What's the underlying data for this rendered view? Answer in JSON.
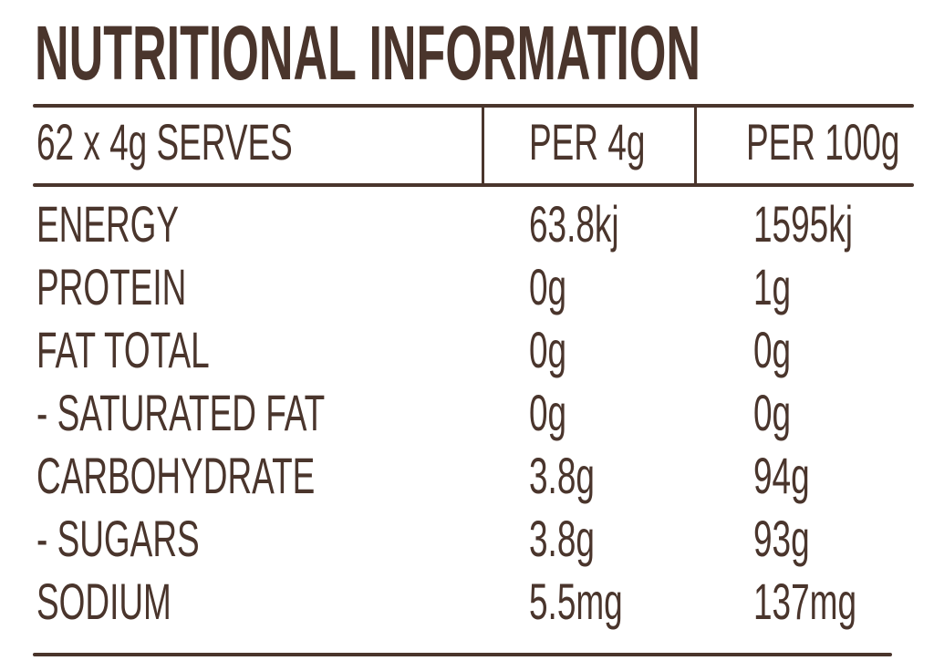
{
  "title": "NUTRITIONAL INFORMATION",
  "header": {
    "serves": "62 x 4g SERVES",
    "col1": "PER 4g",
    "col2": "PER 100g"
  },
  "rows": [
    {
      "label": "ENERGY",
      "per_serve": "63.8kj",
      "per_100g": "1595kj"
    },
    {
      "label": "PROTEIN",
      "per_serve": "0g",
      "per_100g": "1g"
    },
    {
      "label": "FAT TOTAL",
      "per_serve": "0g",
      "per_100g": "0g"
    },
    {
      "label": "- SATURATED FAT",
      "per_serve": "0g",
      "per_100g": "0g"
    },
    {
      "label": "CARBOHYDRATE",
      "per_serve": "3.8g",
      "per_100g": "94g"
    },
    {
      "label": "- SUGARS",
      "per_serve": "3.8g",
      "per_100g": "93g"
    },
    {
      "label": "SODIUM",
      "per_serve": "5.5mg",
      "per_100g": "137mg"
    }
  ],
  "colors": {
    "text": "#4a352c",
    "background": "#ffffff"
  }
}
